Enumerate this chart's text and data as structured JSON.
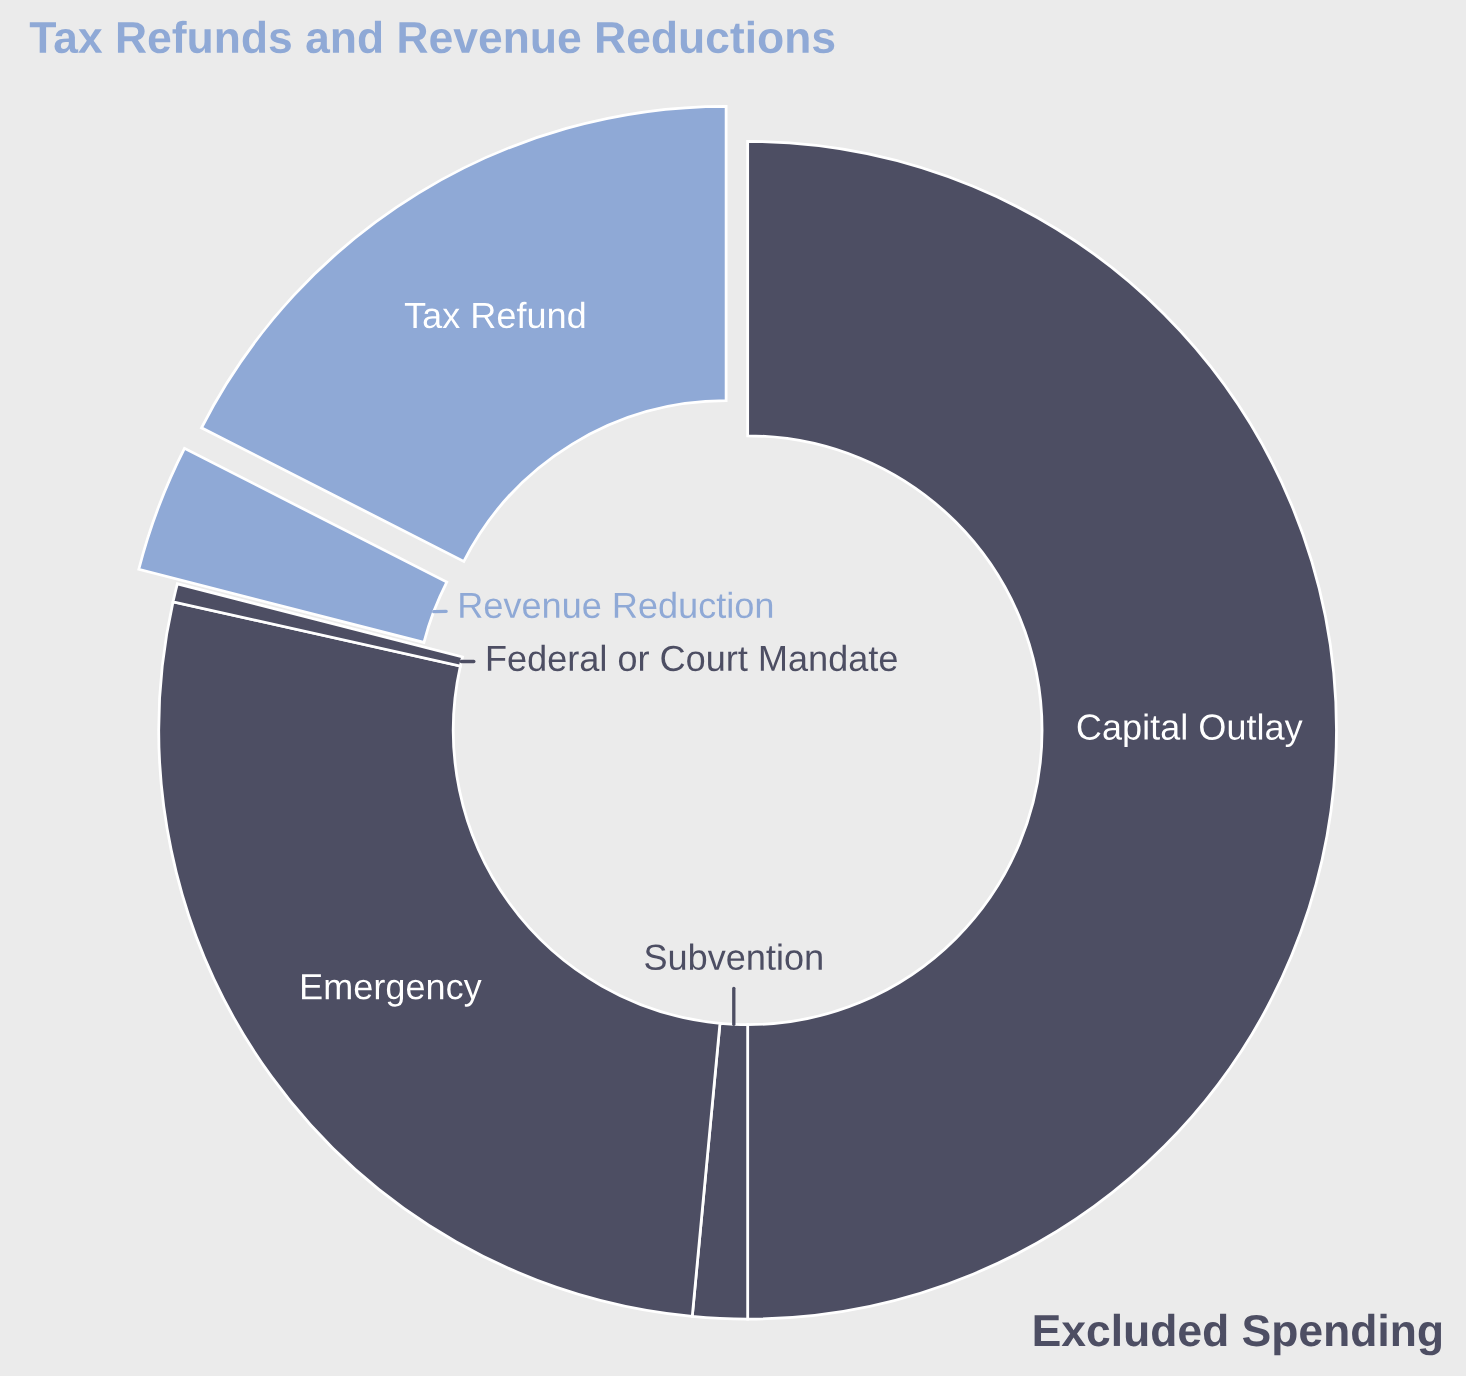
{
  "chart_data": {
    "type": "donut",
    "categories": [
      "Capital Outlay",
      "Subvention",
      "Emergency",
      "Federal or Court Mandate",
      "Revenue Reduction",
      "Tax Refund"
    ],
    "values": [
      50,
      1.5,
      27,
      0.5,
      3.5,
      17.5
    ],
    "colors": [
      "#4d4e63",
      "#4d4e63",
      "#4d4e63",
      "#4d4e63",
      "#8fa9d6",
      "#8fa9d6"
    ],
    "annotations": [
      "Tax Refunds and Revenue Reductions",
      "Excluded Spending"
    ],
    "legend": false
  }
}
